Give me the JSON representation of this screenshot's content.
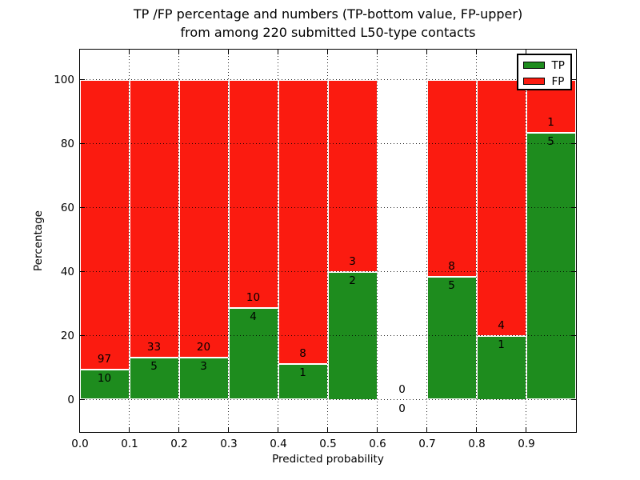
{
  "title": {
    "line1": "TP /FP percentage and numbers (TP-bottom value, FP-upper)",
    "line2": "from among 220 submitted L50-type contacts"
  },
  "axes": {
    "xlabel": "Predicted probability",
    "ylabel": "Percentage",
    "yticks": [
      0,
      20,
      40,
      60,
      80,
      100
    ],
    "xticks": [
      "0.0",
      "0.1",
      "0.2",
      "0.3",
      "0.4",
      "0.5",
      "0.6",
      "0.7",
      "0.8",
      "0.9"
    ],
    "grid": true
  },
  "legend": {
    "position": "upper-right",
    "entries": [
      {
        "label": "TP",
        "color": "#1e8c1e"
      },
      {
        "label": "FP",
        "color": "#fb1b10"
      }
    ]
  },
  "chart_data": {
    "type": "bar",
    "stacked": true,
    "normalized_to_percent": true,
    "title": "TP /FP percentage and numbers (TP-bottom value, FP-upper) from among 220 submitted L50-type contacts",
    "xlabel": "Predicted probability",
    "ylabel": "Percentage",
    "xlim": [
      0.0,
      1.0
    ],
    "ylim_ticks": [
      0,
      100
    ],
    "bin_width": 0.1,
    "total_submitted": 220,
    "colors": {
      "tp": "#1e8c1e",
      "fp": "#fb1b10",
      "bar_edge": "#ffffff"
    },
    "bins": [
      {
        "range": "0.0-0.1",
        "tp": 10,
        "fp": 97,
        "tp_pct": 9.3
      },
      {
        "range": "0.1-0.2",
        "tp": 5,
        "fp": 33,
        "tp_pct": 13.2
      },
      {
        "range": "0.2-0.3",
        "tp": 3,
        "fp": 20,
        "tp_pct": 13.0
      },
      {
        "range": "0.3-0.4",
        "tp": 4,
        "fp": 10,
        "tp_pct": 28.6
      },
      {
        "range": "0.4-0.5",
        "tp": 1,
        "fp": 8,
        "tp_pct": 11.1
      },
      {
        "range": "0.5-0.6",
        "tp": 2,
        "fp": 3,
        "tp_pct": 40.0
      },
      {
        "range": "0.6-0.7",
        "tp": 0,
        "fp": 0,
        "tp_pct": 0
      },
      {
        "range": "0.7-0.8",
        "tp": 5,
        "fp": 8,
        "tp_pct": 38.5
      },
      {
        "range": "0.8-0.9",
        "tp": 1,
        "fp": 4,
        "tp_pct": 20.0
      },
      {
        "range": "0.9-1.0",
        "tp": 5,
        "fp": 1,
        "tp_pct": 83.3
      }
    ]
  }
}
